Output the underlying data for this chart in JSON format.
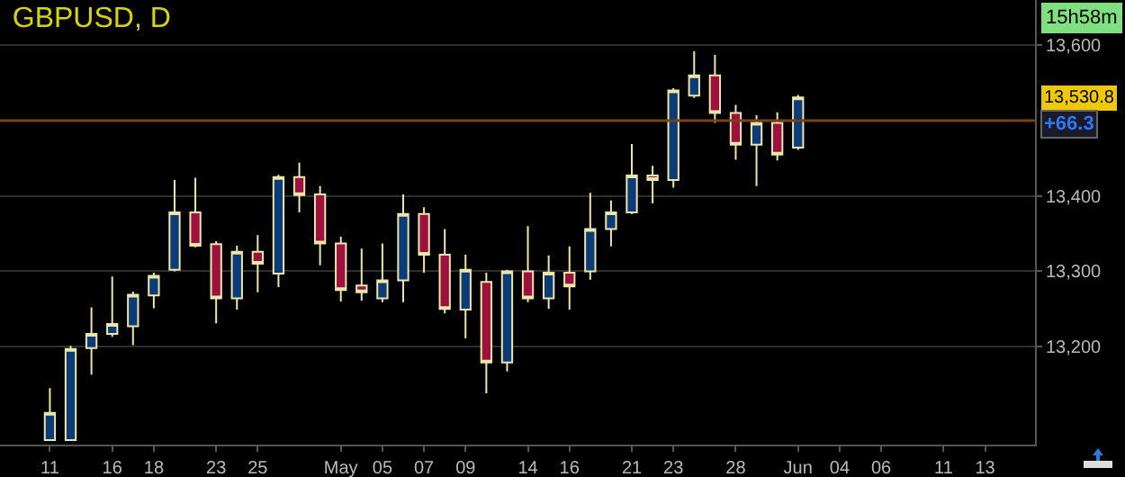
{
  "chart_data": {
    "type": "candlestick",
    "title": "GBPUSD, D",
    "categories": [
      "11",
      null,
      null,
      "16",
      null,
      "18",
      null,
      null,
      "23",
      null,
      "25",
      null,
      null,
      null,
      "May",
      null,
      "05",
      null,
      "07",
      null,
      "09",
      null,
      null,
      "14",
      null,
      "16",
      null,
      null,
      "21",
      null,
      "23",
      null,
      null,
      "28",
      null,
      null,
      "Jun",
      null,
      "04",
      null,
      "06",
      null,
      null,
      "11",
      null,
      "13",
      null,
      null
    ],
    "ohlc": [
      [
        13076,
        13145,
        13076,
        13112
      ],
      [
        13076,
        13201,
        13076,
        13197
      ],
      [
        13198,
        13252,
        13163,
        13217
      ],
      [
        13217,
        13293,
        13213,
        13230
      ],
      [
        13227,
        13273,
        13202,
        13269
      ],
      [
        13268,
        13298,
        13251,
        13294
      ],
      [
        13302,
        13421,
        13300,
        13378
      ],
      [
        13378,
        13424,
        13332,
        13334
      ],
      [
        13336,
        13340,
        13231,
        13264
      ],
      [
        13264,
        13334,
        13249,
        13326
      ],
      [
        13326,
        13348,
        13272,
        13310
      ],
      [
        13297,
        13428,
        13279,
        13425
      ],
      [
        13425,
        13444,
        13378,
        13401
      ],
      [
        13402,
        13413,
        13308,
        13337
      ],
      [
        13337,
        13346,
        13260,
        13275
      ],
      [
        13281,
        13330,
        13261,
        13272
      ],
      [
        13264,
        13337,
        13259,
        13288
      ],
      [
        13288,
        13402,
        13259,
        13376
      ],
      [
        13376,
        13385,
        13298,
        13322
      ],
      [
        13322,
        13356,
        13244,
        13250
      ],
      [
        13249,
        13322,
        13211,
        13302
      ],
      [
        13286,
        13298,
        13138,
        13179
      ],
      [
        13179,
        13302,
        13167,
        13300
      ],
      [
        13300,
        13360,
        13259,
        13264
      ],
      [
        13264,
        13321,
        13250,
        13298
      ],
      [
        13298,
        13333,
        13249,
        13280
      ],
      [
        13300,
        13404,
        13289,
        13356
      ],
      [
        13356,
        13394,
        13333,
        13378
      ],
      [
        13378,
        13469,
        13376,
        13427
      ],
      [
        13427,
        13440,
        13390,
        13421
      ],
      [
        13421,
        13543,
        13411,
        13540
      ],
      [
        13533,
        13592,
        13530,
        13560
      ],
      [
        13560,
        13587,
        13497,
        13510
      ],
      [
        13510,
        13521,
        13448,
        13468
      ],
      [
        13468,
        13507,
        13413,
        13497
      ],
      [
        13497,
        13511,
        13447,
        13455
      ],
      [
        13464,
        13534,
        13461,
        13530.8
      ],
      null,
      null,
      null,
      null,
      null,
      null,
      null,
      null,
      null,
      null,
      null
    ],
    "colors": [
      "#0b3b78",
      "#0b3b78",
      "#0b3b78",
      "#0b3b78",
      "#0b3b78",
      "#0b3b78",
      "#0b3b78",
      "#9e1040",
      "#9e1040",
      "#0b3b78",
      "#9e1040",
      "#0b3b78",
      "#9e1040",
      "#9e1040",
      "#9e1040",
      "#9e1040",
      "#0b3b78",
      "#0b3b78",
      "#9e1040",
      "#9e1040",
      "#0b3b78",
      "#9e1040",
      "#0b3b78",
      "#9e1040",
      "#0b3b78",
      "#9e1040",
      "#0b3b78",
      "#0b3b78",
      "#0b3b78",
      "#9e1040",
      "#0b3b78",
      "#0b3b78",
      "#9e1040",
      "#9e1040",
      "#0b3b78",
      "#9e1040",
      "#0b3b78",
      null,
      null,
      null,
      null,
      null,
      null,
      null,
      null,
      null,
      null,
      null
    ],
    "ylim": [
      13070,
      13660
    ],
    "yticks": [
      {
        "value": 13200,
        "label": "13,200"
      },
      {
        "value": 13300,
        "label": "13,300"
      },
      {
        "value": 13400,
        "label": "13,400"
      },
      {
        "value": 13600,
        "label": "13,600"
      }
    ],
    "grid": "y",
    "legend": false,
    "ref_lines": [
      {
        "axis": "y",
        "value": 13500,
        "color": "#7a4210"
      }
    ],
    "annotations": [
      "15h58m",
      {
        "text": "13,530.8",
        "y": 13530.8
      },
      "+66.3"
    ]
  }
}
